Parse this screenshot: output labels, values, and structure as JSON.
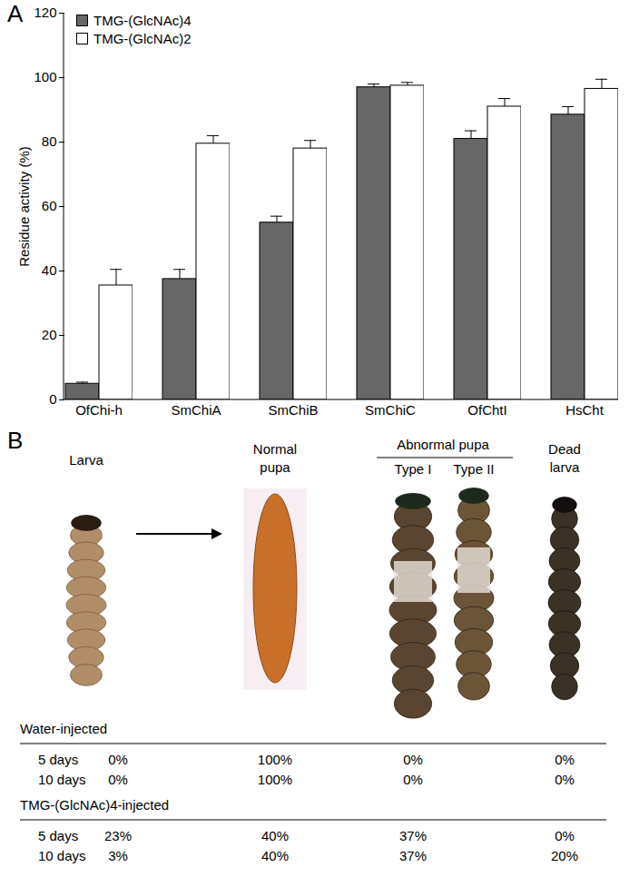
{
  "chart_data": {
    "type": "bar",
    "categories": [
      "OfChi-h",
      "SmChiA",
      "SmChiB",
      "SmChiC",
      "OfChtI",
      "HsCht"
    ],
    "series": [
      {
        "name": "TMG-(GlcNAc)4",
        "color": "#676767",
        "values": [
          5,
          37.5,
          55,
          97,
          81,
          88.5
        ],
        "error": [
          0.5,
          3,
          2,
          1,
          2.5,
          2.5
        ]
      },
      {
        "name": "TMG-(GlcNAc)2",
        "color": "#ffffff",
        "values": [
          35.5,
          79.5,
          78,
          97.5,
          91,
          96.5
        ],
        "error": [
          5,
          2.5,
          2.5,
          1,
          2.5,
          3
        ]
      }
    ],
    "ylabel": "Residue activity (%)",
    "ylim": [
      0,
      120
    ],
    "yticks": [
      0,
      20,
      40,
      60,
      80,
      100,
      120
    ],
    "grid": false,
    "legend": "top-left"
  },
  "panel_a_label": "A",
  "panel_b": {
    "label": "B",
    "columns": [
      {
        "label": "Larva"
      },
      {
        "label": "Normal pupa"
      },
      {
        "label": "Abnormal pupa",
        "sublabels": [
          "Type I",
          "Type II"
        ]
      },
      {
        "label": "Dead larva"
      }
    ],
    "groups": [
      {
        "name": "Water-injected",
        "rows": [
          {
            "label": "5 days",
            "values": [
              "0%",
              "100%",
              "0%",
              "0%"
            ]
          },
          {
            "label": "10 days",
            "values": [
              "0%",
              "100%",
              "0%",
              "0%"
            ]
          }
        ]
      },
      {
        "name": "TMG-(GlcNAc)4-injected",
        "rows": [
          {
            "label": "5 days",
            "values": [
              "23%",
              "40%",
              "37%",
              "0%"
            ]
          },
          {
            "label": "10 days",
            "values": [
              "3%",
              "40%",
              "37%",
              "20%"
            ]
          }
        ]
      }
    ]
  }
}
